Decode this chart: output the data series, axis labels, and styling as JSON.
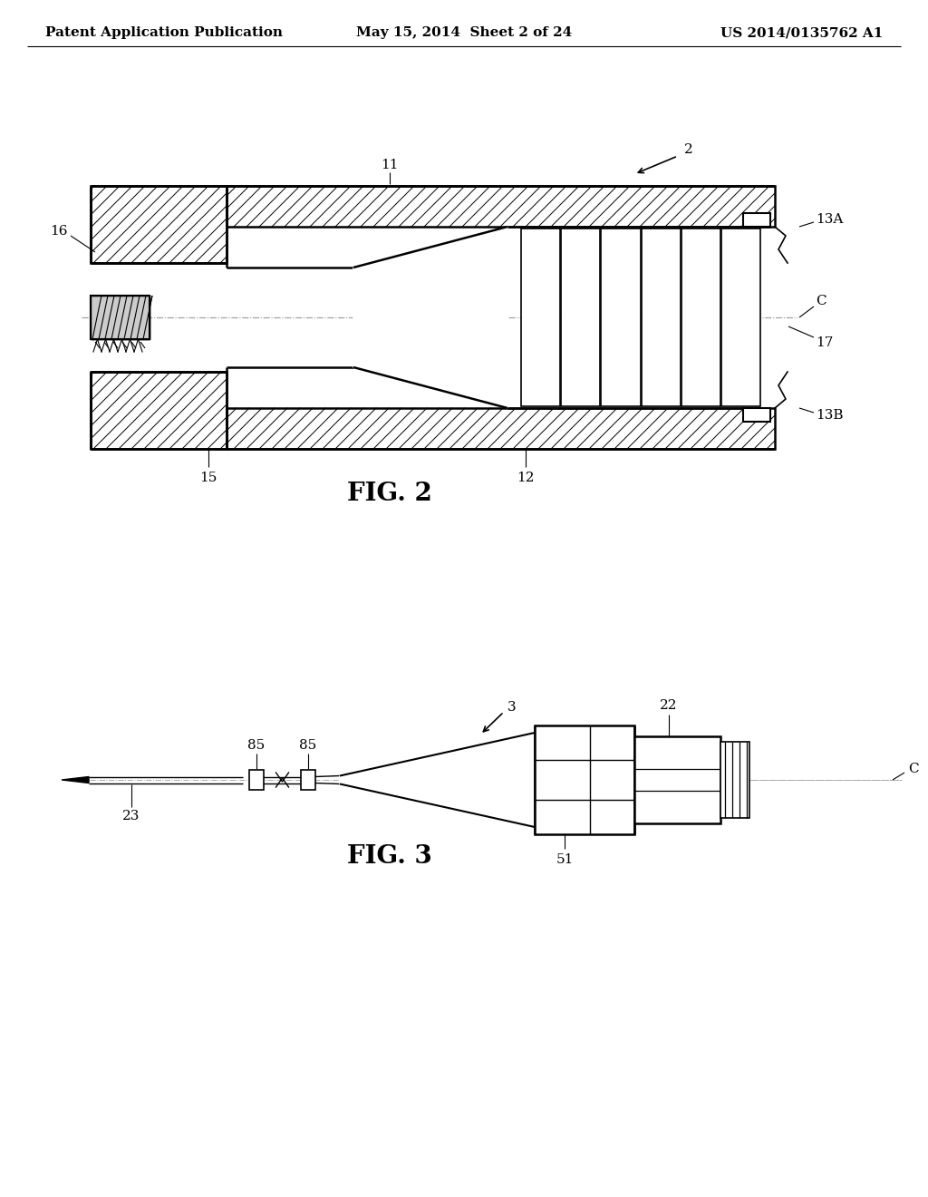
{
  "bg_color": "#ffffff",
  "line_color": "#000000",
  "header": {
    "left": "Patent Application Publication",
    "center": "May 15, 2014  Sheet 2 of 24",
    "right": "US 2014/0135762 A1",
    "fontsize": 11
  }
}
